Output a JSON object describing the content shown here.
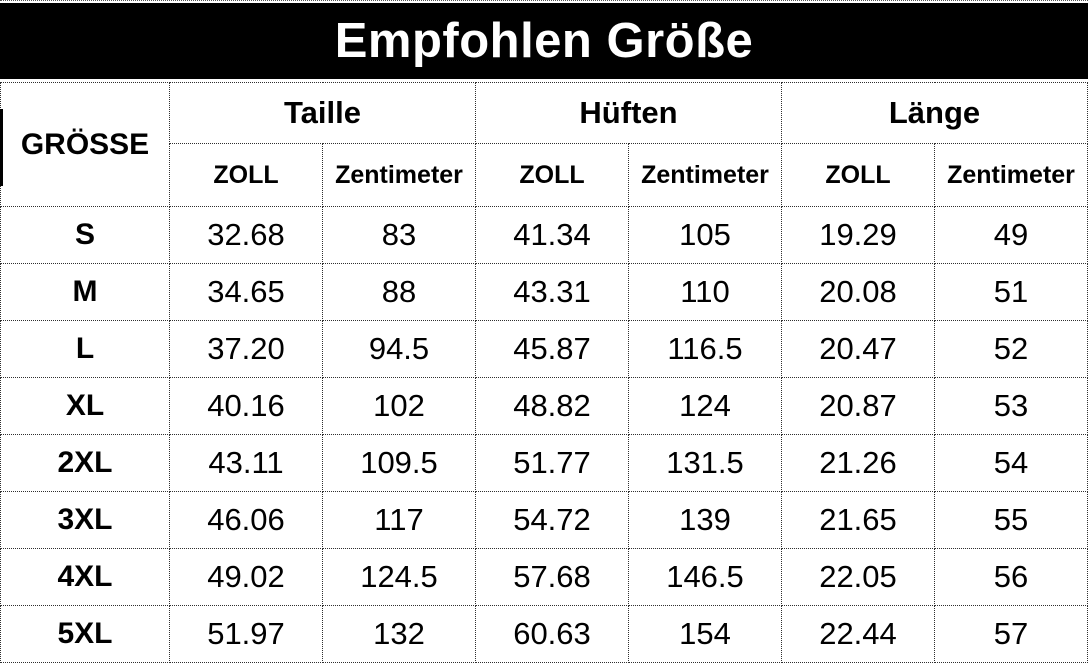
{
  "title": "Empfohlen Größe",
  "table": {
    "size_column_header": "GRÖSSE",
    "group_headers": [
      "Taille",
      "Hüften",
      "Länge"
    ],
    "sub_headers": [
      "ZOLL",
      "Zentimeter"
    ],
    "rows": [
      {
        "size": "S",
        "values": [
          "32.68",
          "83",
          "41.34",
          "105",
          "19.29",
          "49"
        ]
      },
      {
        "size": "M",
        "values": [
          "34.65",
          "88",
          "43.31",
          "110",
          "20.08",
          "51"
        ]
      },
      {
        "size": "L",
        "values": [
          "37.20",
          "94.5",
          "45.87",
          "116.5",
          "20.47",
          "52"
        ]
      },
      {
        "size": "XL",
        "values": [
          "40.16",
          "102",
          "48.82",
          "124",
          "20.87",
          "53"
        ]
      },
      {
        "size": "2XL",
        "values": [
          "43.11",
          "109.5",
          "51.77",
          "131.5",
          "21.26",
          "54"
        ]
      },
      {
        "size": "3XL",
        "values": [
          "46.06",
          "117",
          "54.72",
          "139",
          "21.65",
          "55"
        ]
      },
      {
        "size": "4XL",
        "values": [
          "49.02",
          "124.5",
          "57.68",
          "146.5",
          "22.05",
          "56"
        ]
      },
      {
        "size": "5XL",
        "values": [
          "51.97",
          "132",
          "60.63",
          "154",
          "22.44",
          "57"
        ]
      }
    ]
  },
  "colors": {
    "band_background": "#000000",
    "band_text": "#ffffff",
    "body_text": "#000000",
    "border": "#2f2f2f",
    "background": "#ffffff"
  },
  "chart_data": {
    "type": "table",
    "title": "Empfohlen Größe",
    "columns": [
      "GRÖSSE",
      "Taille ZOLL",
      "Taille Zentimeter",
      "Hüften ZOLL",
      "Hüften Zentimeter",
      "Länge ZOLL",
      "Länge Zentimeter"
    ],
    "rows": [
      [
        "S",
        32.68,
        83,
        41.34,
        105,
        19.29,
        49
      ],
      [
        "M",
        34.65,
        88,
        43.31,
        110,
        20.08,
        51
      ],
      [
        "L",
        37.2,
        94.5,
        45.87,
        116.5,
        20.47,
        52
      ],
      [
        "XL",
        40.16,
        102,
        48.82,
        124,
        20.87,
        53
      ],
      [
        "2XL",
        43.11,
        109.5,
        51.77,
        131.5,
        21.26,
        54
      ],
      [
        "3XL",
        46.06,
        117,
        54.72,
        139,
        21.65,
        55
      ],
      [
        "4XL",
        49.02,
        124.5,
        57.68,
        146.5,
        22.05,
        56
      ],
      [
        "5XL",
        51.97,
        132,
        60.63,
        154,
        22.44,
        57
      ]
    ]
  }
}
